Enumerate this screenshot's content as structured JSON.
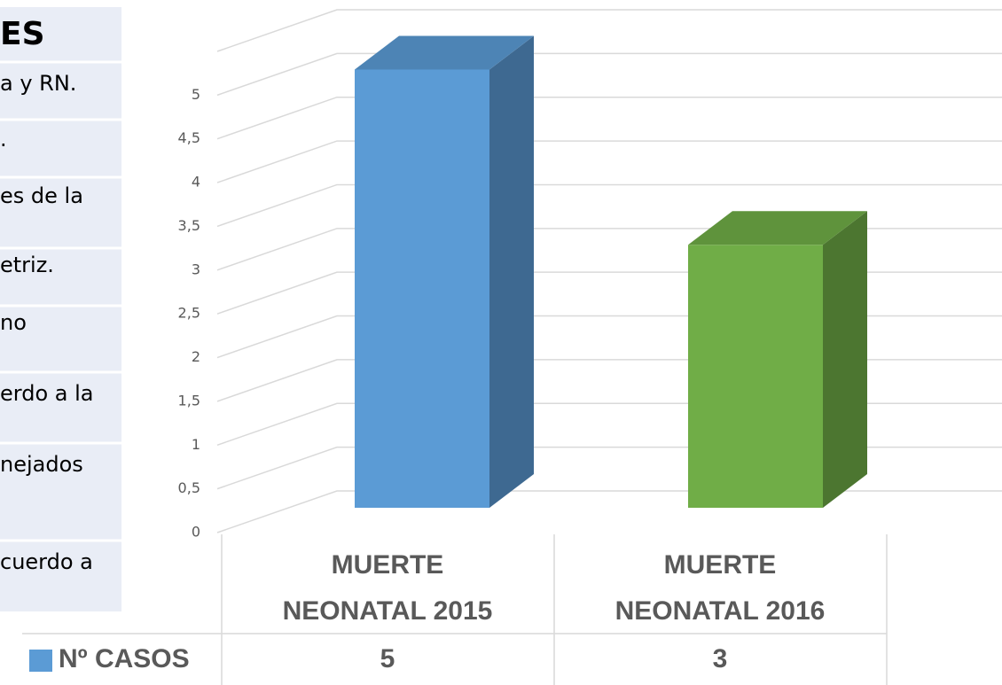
{
  "left_table": {
    "header": "ES",
    "rows": [
      "a y RN.",
      ".",
      "es de la",
      "etriz.",
      "no",
      "erdo a la",
      "nejados",
      "cuerdo a"
    ]
  },
  "chart_data": {
    "type": "bar3d",
    "categories": [
      "MUERTE NEONATAL 2015",
      "MUERTE NEONATAL 2016"
    ],
    "series": [
      {
        "name": "Nº CASOS",
        "color": "#5b9bd5",
        "point_colors": [
          "#5b9bd5",
          "#70ad47"
        ],
        "values": [
          5,
          3
        ]
      }
    ],
    "ylim": [
      0,
      5.5
    ],
    "yticks": [
      0,
      {
        "value": 0.5,
        "label": "0,5"
      },
      1,
      {
        "value": 1.5,
        "label": "1,5"
      },
      2,
      {
        "value": 2.5,
        "label": "2,5"
      },
      3,
      {
        "value": 3.5,
        "label": "3,5"
      },
      4,
      {
        "value": 4.5,
        "label": "4,5"
      },
      5
    ],
    "grid": true,
    "data_table": true
  }
}
